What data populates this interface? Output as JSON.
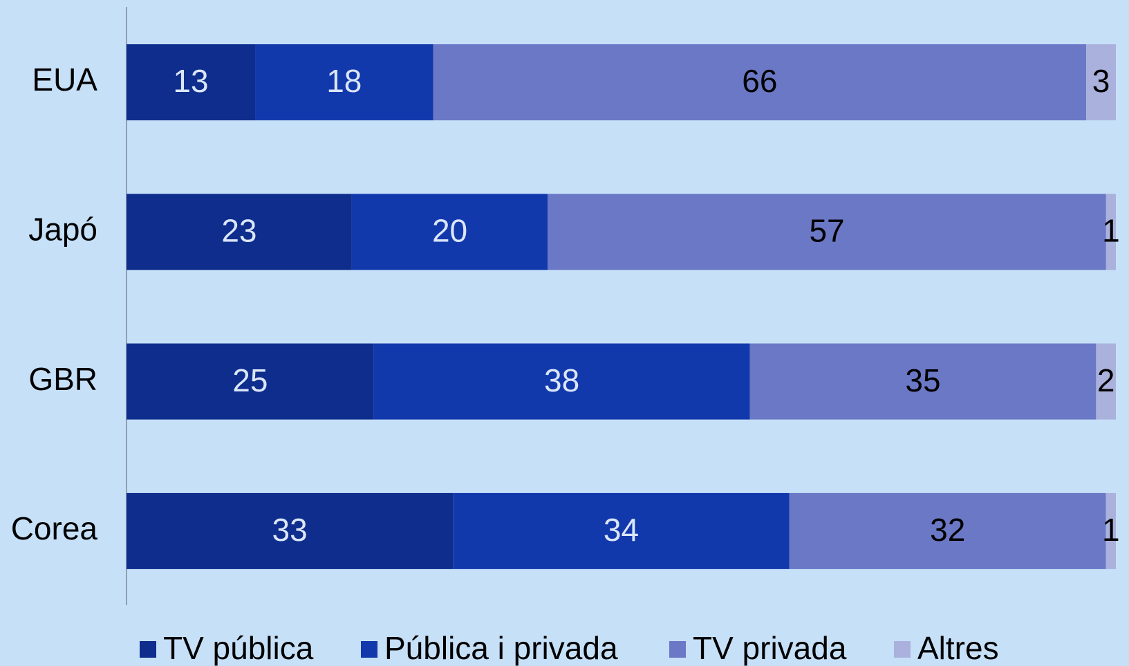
{
  "chart_data": {
    "type": "stacked-bar-horizontal",
    "stacking": "percent",
    "categories": [
      "EUA",
      "Japó",
      "GBR",
      "Corea"
    ],
    "series": [
      {
        "name": "TV pública",
        "color": "#0e2d8c",
        "label_color": "#dbe6f8",
        "values": [
          13,
          23,
          25,
          33
        ]
      },
      {
        "name": "Pública i privada",
        "color": "#1239ac",
        "label_color": "#dbe6f8",
        "values": [
          18,
          20,
          38,
          34
        ]
      },
      {
        "name": "TV privada",
        "color": "#6b78c6",
        "label_color": "#000000",
        "values": [
          66,
          57,
          35,
          32
        ]
      },
      {
        "name": "Altres",
        "color": "#aab1dc",
        "label_color": "#000000",
        "values": [
          3,
          1,
          2,
          1
        ]
      }
    ],
    "legend": "bottom"
  }
}
